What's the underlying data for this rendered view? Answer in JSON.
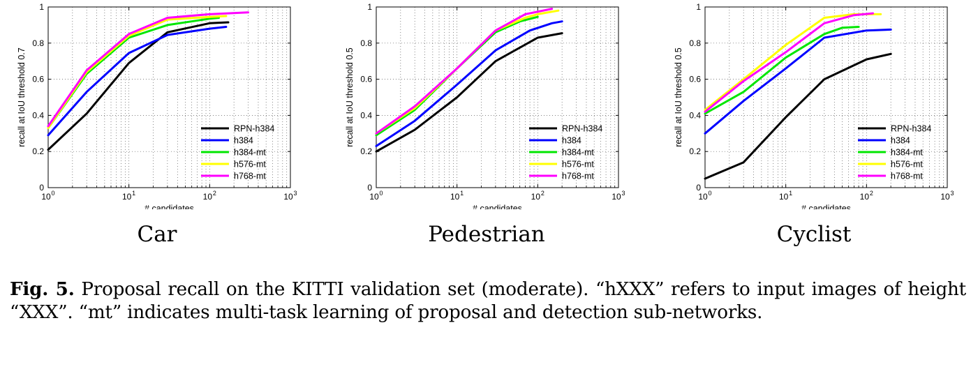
{
  "caption": {
    "label": "Fig. 5.",
    "text": "Proposal recall on the KITTI validation set (moderate). “hXXX” refers to input images of height “XXX”. “mt” indicates multi-task learning of proposal and detection sub-networks."
  },
  "legend_colors": {
    "RPN-h384": "#000000",
    "h384": "#0000ff",
    "h384-mt": "#00e600",
    "h576-mt": "#ffff00",
    "h768-mt": "#ff00ff"
  },
  "chart_data": [
    {
      "type": "line",
      "subtitle": "Car",
      "xlabel": "# candidates",
      "ylabel": "recall at IoU threshold 0.7",
      "xscale": "log",
      "xlim": [
        1,
        1000
      ],
      "ylim": [
        0,
        1
      ],
      "xticks": [
        "10^0",
        "10^1",
        "10^2",
        "10^3"
      ],
      "yticks": [
        "0",
        "0.2",
        "0.4",
        "0.6",
        "0.8",
        "1"
      ],
      "grid": true,
      "legend_position": "bottom-right",
      "series": [
        {
          "name": "RPN-h384",
          "color": "#000000",
          "x": [
            1,
            3,
            10,
            30,
            100,
            170
          ],
          "y": [
            0.21,
            0.41,
            0.69,
            0.86,
            0.91,
            0.915
          ]
        },
        {
          "name": "h384",
          "color": "#0000ff",
          "x": [
            1,
            3,
            10,
            30,
            100,
            160
          ],
          "y": [
            0.29,
            0.53,
            0.745,
            0.845,
            0.88,
            0.89
          ]
        },
        {
          "name": "h384-mt",
          "color": "#00e600",
          "x": [
            1,
            3,
            10,
            30,
            100,
            130
          ],
          "y": [
            0.33,
            0.63,
            0.83,
            0.9,
            0.935,
            0.94
          ]
        },
        {
          "name": "h576-mt",
          "color": "#ffff00",
          "x": [
            1,
            3,
            10,
            30,
            100,
            160
          ],
          "y": [
            0.33,
            0.64,
            0.84,
            0.93,
            0.945,
            0.95
          ]
        },
        {
          "name": "h768-mt",
          "color": "#ff00ff",
          "x": [
            1,
            3,
            10,
            30,
            100,
            300
          ],
          "y": [
            0.34,
            0.65,
            0.85,
            0.94,
            0.96,
            0.97
          ]
        }
      ]
    },
    {
      "type": "line",
      "subtitle": "Pedestrian",
      "xlabel": "# candidates",
      "ylabel": "recall at IoU threshold 0.5",
      "xscale": "log",
      "xlim": [
        1,
        1000
      ],
      "ylim": [
        0,
        1
      ],
      "xticks": [
        "10^0",
        "10^1",
        "10^2",
        "10^3"
      ],
      "yticks": [
        "0",
        "0.2",
        "0.4",
        "0.6",
        "0.8",
        "1"
      ],
      "grid": true,
      "legend_position": "bottom-right",
      "series": [
        {
          "name": "RPN-h384",
          "color": "#000000",
          "x": [
            1,
            3,
            10,
            30,
            100,
            200
          ],
          "y": [
            0.2,
            0.32,
            0.5,
            0.7,
            0.83,
            0.855
          ]
        },
        {
          "name": "h384",
          "color": "#0000ff",
          "x": [
            1,
            3,
            10,
            30,
            80,
            150,
            200
          ],
          "y": [
            0.23,
            0.37,
            0.57,
            0.76,
            0.87,
            0.91,
            0.92
          ]
        },
        {
          "name": "h384-mt",
          "color": "#00e600",
          "x": [
            1,
            3,
            10,
            30,
            60,
            100
          ],
          "y": [
            0.29,
            0.43,
            0.66,
            0.86,
            0.92,
            0.945
          ]
        },
        {
          "name": "h576-mt",
          "color": "#ffff00",
          "x": [
            1,
            3,
            10,
            30,
            70,
            100,
            180
          ],
          "y": [
            0.3,
            0.44,
            0.66,
            0.87,
            0.94,
            0.96,
            0.98
          ]
        },
        {
          "name": "h768-mt",
          "color": "#ff00ff",
          "x": [
            1,
            3,
            10,
            30,
            70,
            150
          ],
          "y": [
            0.3,
            0.45,
            0.66,
            0.87,
            0.96,
            0.99
          ]
        }
      ]
    },
    {
      "type": "line",
      "subtitle": "Cyclist",
      "xlabel": "# candidates",
      "ylabel": "recall at IoU threshold 0.5",
      "xscale": "log",
      "xlim": [
        1,
        1000
      ],
      "ylim": [
        0,
        1
      ],
      "xticks": [
        "10^0",
        "10^1",
        "10^2",
        "10^3"
      ],
      "yticks": [
        "0",
        "0.2",
        "0.4",
        "0.6",
        "0.8",
        "1"
      ],
      "grid": true,
      "legend_position": "bottom-right",
      "series": [
        {
          "name": "RPN-h384",
          "color": "#000000",
          "x": [
            1,
            3,
            10,
            30,
            100,
            200
          ],
          "y": [
            0.05,
            0.14,
            0.39,
            0.6,
            0.71,
            0.74
          ]
        },
        {
          "name": "h384",
          "color": "#0000ff",
          "x": [
            1,
            3,
            10,
            30,
            100,
            200
          ],
          "y": [
            0.3,
            0.48,
            0.66,
            0.83,
            0.87,
            0.875
          ]
        },
        {
          "name": "h384-mt",
          "color": "#00e600",
          "x": [
            1,
            3,
            10,
            30,
            50,
            80
          ],
          "y": [
            0.41,
            0.53,
            0.72,
            0.85,
            0.885,
            0.89
          ]
        },
        {
          "name": "h576-mt",
          "color": "#ffff00",
          "x": [
            1,
            3,
            10,
            30,
            70,
            150
          ],
          "y": [
            0.43,
            0.6,
            0.79,
            0.94,
            0.96,
            0.96
          ]
        },
        {
          "name": "h768-mt",
          "color": "#ff00ff",
          "x": [
            1,
            3,
            10,
            30,
            70,
            120
          ],
          "y": [
            0.42,
            0.59,
            0.75,
            0.91,
            0.955,
            0.965
          ]
        }
      ]
    }
  ]
}
